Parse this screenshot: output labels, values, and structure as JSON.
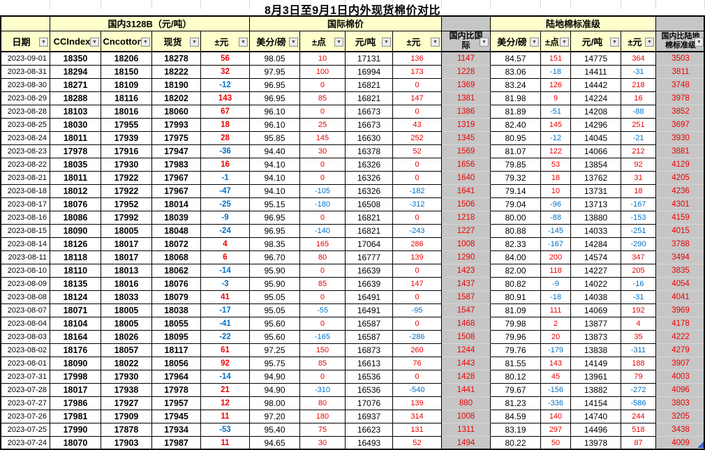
{
  "title": "8月3日至9月1日内外现货棉价对比",
  "colors": {
    "positive": "#ee0000",
    "negative": "#0070c6",
    "header_bg": "#ffffcc",
    "compare_bg": "#c6c6c6"
  },
  "icons": {
    "filter_dropdown": "▼"
  },
  "table": {
    "groups": [
      {
        "label": "",
        "span": 1,
        "grey": false
      },
      {
        "label": "国内3128B（元/吨）",
        "span": 4,
        "grey": false
      },
      {
        "label": "国际棉价",
        "span": 4,
        "grey": false
      },
      {
        "label": "",
        "span": 1,
        "grey": true
      },
      {
        "label": "陆地棉标准级",
        "span": 4,
        "grey": false
      },
      {
        "label": "",
        "span": 1,
        "grey": true
      }
    ],
    "columns": [
      {
        "label": "日期"
      },
      {
        "label": "CCIndex"
      },
      {
        "label": "Cncotton"
      },
      {
        "label": "现货"
      },
      {
        "label": "±元"
      },
      {
        "label": "美分/磅"
      },
      {
        "label": "±点"
      },
      {
        "label": "元/吨"
      },
      {
        "label": "±元"
      },
      {
        "label": "国内比国际"
      },
      {
        "label": "美分/磅"
      },
      {
        "label": "±点"
      },
      {
        "label": "元/吨"
      },
      {
        "label": "±元"
      },
      {
        "label": "国内比陆地棉标准级"
      }
    ],
    "rows": [
      [
        "2023-09-01",
        "18350",
        "18206",
        "18278",
        "56",
        "98.05",
        "10",
        "17131",
        "136",
        "1147",
        "84.57",
        "151",
        "14775",
        "364",
        "3503"
      ],
      [
        "2023-08-31",
        "18294",
        "18150",
        "18222",
        "32",
        "97.95",
        "100",
        "16994",
        "173",
        "1228",
        "83.06",
        "-18",
        "14411",
        "-31",
        "3811"
      ],
      [
        "2023-08-30",
        "18271",
        "18109",
        "18190",
        "-12",
        "96.95",
        "0",
        "16821",
        "0",
        "1369",
        "83.24",
        "126",
        "14442",
        "218",
        "3748"
      ],
      [
        "2023-08-29",
        "18288",
        "18116",
        "18202",
        "143",
        "96.95",
        "85",
        "16821",
        "147",
        "1381",
        "81.98",
        "9",
        "14224",
        "16",
        "3978"
      ],
      [
        "2023-08-28",
        "18103",
        "18016",
        "18060",
        "67",
        "96.10",
        "0",
        "16673",
        "0",
        "1386",
        "81.89",
        "-51",
        "14208",
        "-88",
        "3852"
      ],
      [
        "2023-08-25",
        "18030",
        "17955",
        "17993",
        "18",
        "96.10",
        "25",
        "16673",
        "43",
        "1319",
        "82.40",
        "145",
        "14296",
        "251",
        "3697"
      ],
      [
        "2023-08-24",
        "18011",
        "17939",
        "17975",
        "28",
        "95.85",
        "145",
        "16630",
        "252",
        "1345",
        "80.95",
        "-12",
        "14045",
        "-21",
        "3930"
      ],
      [
        "2023-08-23",
        "17978",
        "17916",
        "17947",
        "-36",
        "94.40",
        "30",
        "16378",
        "52",
        "1569",
        "81.07",
        "122",
        "14066",
        "212",
        "3881"
      ],
      [
        "2023-08-22",
        "18035",
        "17930",
        "17983",
        "16",
        "94.10",
        "0",
        "16326",
        "0",
        "1656",
        "79.85",
        "53",
        "13854",
        "92",
        "4129"
      ],
      [
        "2023-08-21",
        "18011",
        "17922",
        "17967",
        "-1",
        "94.10",
        "0",
        "16326",
        "0",
        "1640",
        "79.32",
        "18",
        "13762",
        "31",
        "4205"
      ],
      [
        "2023-08-18",
        "18012",
        "17922",
        "17967",
        "-47",
        "94.10",
        "-105",
        "16326",
        "-182",
        "1641",
        "79.14",
        "10",
        "13731",
        "18",
        "4236"
      ],
      [
        "2023-08-17",
        "18076",
        "17952",
        "18014",
        "-25",
        "95.15",
        "-180",
        "16508",
        "-312",
        "1506",
        "79.04",
        "-96",
        "13713",
        "-167",
        "4301"
      ],
      [
        "2023-08-16",
        "18086",
        "17992",
        "18039",
        "-9",
        "96.95",
        "0",
        "16821",
        "0",
        "1218",
        "80.00",
        "-88",
        "13880",
        "-153",
        "4159"
      ],
      [
        "2023-08-15",
        "18090",
        "18005",
        "18048",
        "-24",
        "96.95",
        "-140",
        "16821",
        "-243",
        "1227",
        "80.88",
        "-145",
        "14033",
        "-251",
        "4015"
      ],
      [
        "2023-08-14",
        "18126",
        "18017",
        "18072",
        "4",
        "98.35",
        "165",
        "17064",
        "286",
        "1008",
        "82.33",
        "-167",
        "14284",
        "-290",
        "3788"
      ],
      [
        "2023-08-11",
        "18118",
        "18017",
        "18068",
        "6",
        "96.70",
        "80",
        "16777",
        "139",
        "1290",
        "84.00",
        "200",
        "14574",
        "347",
        "3494"
      ],
      [
        "2023-08-10",
        "18110",
        "18013",
        "18062",
        "-14",
        "95.90",
        "0",
        "16639",
        "0",
        "1423",
        "82.00",
        "118",
        "14227",
        "205",
        "3835"
      ],
      [
        "2023-08-09",
        "18135",
        "18016",
        "18076",
        "-3",
        "95.90",
        "85",
        "16639",
        "147",
        "1437",
        "80.82",
        "-9",
        "14022",
        "-16",
        "4054"
      ],
      [
        "2023-08-08",
        "18124",
        "18033",
        "18079",
        "41",
        "95.05",
        "0",
        "16491",
        "0",
        "1587",
        "80.91",
        "-18",
        "14038",
        "-31",
        "4041"
      ],
      [
        "2023-08-07",
        "18071",
        "18005",
        "18038",
        "-17",
        "95.05",
        "-55",
        "16491",
        "-95",
        "1547",
        "81.09",
        "111",
        "14069",
        "192",
        "3969"
      ],
      [
        "2023-08-04",
        "18104",
        "18005",
        "18055",
        "-41",
        "95.60",
        "0",
        "16587",
        "0",
        "1468",
        "79.98",
        "2",
        "13877",
        "4",
        "4178"
      ],
      [
        "2023-08-03",
        "18164",
        "18026",
        "18095",
        "-22",
        "95.60",
        "-165",
        "16587",
        "-286",
        "1508",
        "79.96",
        "20",
        "13873",
        "35",
        "4222"
      ],
      [
        "2023-08-02",
        "18176",
        "18057",
        "18117",
        "61",
        "97.25",
        "150",
        "16873",
        "260",
        "1244",
        "79.76",
        "-179",
        "13838",
        "-311",
        "4279"
      ],
      [
        "2023-08-01",
        "18090",
        "18022",
        "18056",
        "92",
        "95.75",
        "85",
        "16613",
        "76",
        "1443",
        "81.55",
        "143",
        "14149",
        "188",
        "3907"
      ],
      [
        "2023-07-31",
        "17998",
        "17930",
        "17964",
        "-14",
        "94.90",
        "0",
        "16536",
        "0",
        "1428",
        "80.12",
        "45",
        "13961",
        "79",
        "4003"
      ],
      [
        "2023-07-28",
        "18017",
        "17938",
        "17978",
        "21",
        "94.90",
        "-310",
        "16536",
        "-540",
        "1441",
        "79.67",
        "-156",
        "13882",
        "-272",
        "4096"
      ],
      [
        "2023-07-27",
        "17986",
        "17927",
        "17957",
        "12",
        "98.00",
        "80",
        "17076",
        "139",
        "880",
        "81.23",
        "-336",
        "14154",
        "-586",
        "3803"
      ],
      [
        "2023-07-26",
        "17981",
        "17909",
        "17945",
        "11",
        "97.20",
        "180",
        "16937",
        "314",
        "1008",
        "84.59",
        "140",
        "14740",
        "244",
        "3205"
      ],
      [
        "2023-07-25",
        "17990",
        "17878",
        "17934",
        "-53",
        "95.40",
        "75",
        "16623",
        "131",
        "1311",
        "83.19",
        "297",
        "14496",
        "518",
        "3438"
      ],
      [
        "2023-07-24",
        "18070",
        "17903",
        "17987",
        "11",
        "94.65",
        "30",
        "16493",
        "52",
        "1494",
        "80.22",
        "50",
        "13978",
        "87",
        "4009"
      ]
    ]
  }
}
